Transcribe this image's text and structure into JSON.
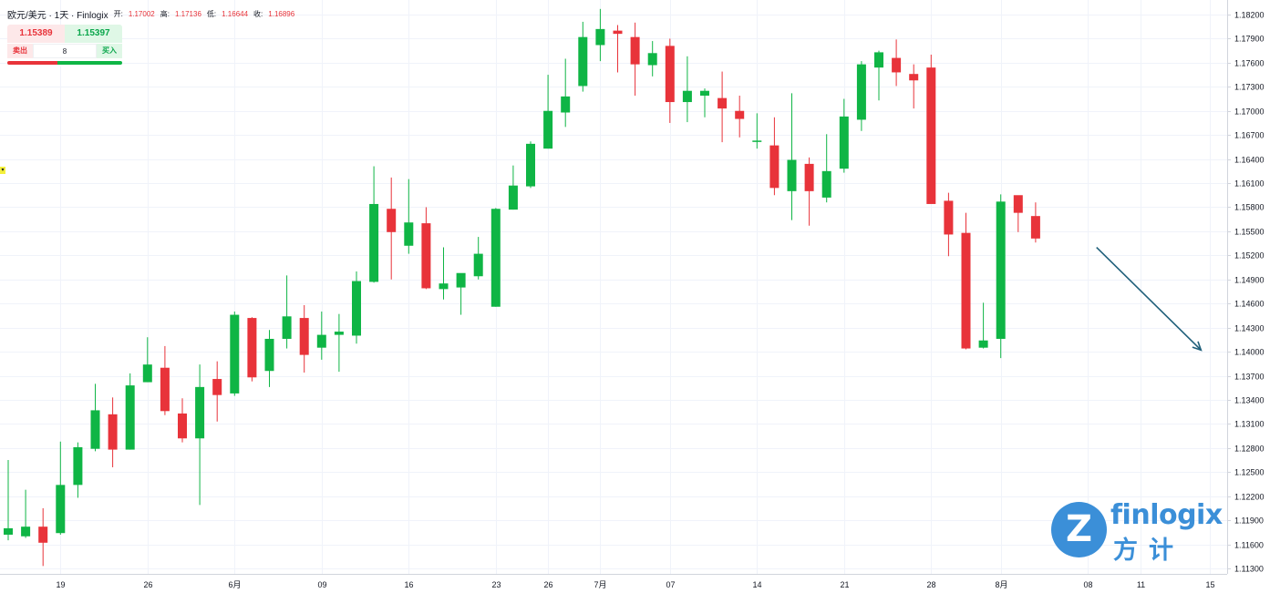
{
  "header": {
    "symbol": "欧元/美元 · 1天 · Finlogix",
    "open_label": "开:",
    "open": "1.17002",
    "high_label": "高:",
    "high": "1.17136",
    "low_label": "低:",
    "low": "1.16644",
    "close_label": "收:",
    "close": "1.16896"
  },
  "trade": {
    "sell_price": "1.15389",
    "buy_price": "1.15397",
    "sell_label": "卖出",
    "buy_label": "买入",
    "quantity": "8"
  },
  "marker": "▾",
  "logo": {
    "text": "finlogix",
    "cn": "方计",
    "symbol": "Z"
  },
  "colors": {
    "up": "#0fb545",
    "down": "#e8333a",
    "arrow": "#1f5f7a",
    "logo": "#3b8fd8"
  },
  "chart_data": {
    "type": "candlestick",
    "y_axis": {
      "min": 1.113,
      "max": 1.182,
      "ticks": [
        "1.18200",
        "1.17900",
        "1.17600",
        "1.17300",
        "1.17000",
        "1.16700",
        "1.16400",
        "1.16100",
        "1.15800",
        "1.15500",
        "1.15200",
        "1.14900",
        "1.14600",
        "1.14300",
        "1.14000",
        "1.13700",
        "1.13400",
        "1.13100",
        "1.12800",
        "1.12500",
        "1.12200",
        "1.11900",
        "1.11600",
        "1.11300"
      ]
    },
    "x_axis": {
      "labels": [
        {
          "label": "19",
          "index": 3
        },
        {
          "label": "26",
          "index": 8
        },
        {
          "label": "6月",
          "index": 13
        },
        {
          "label": "09",
          "index": 18
        },
        {
          "label": "16",
          "index": 23
        },
        {
          "label": "23",
          "index": 28
        },
        {
          "label": "26",
          "index": 31
        },
        {
          "label": "7月",
          "index": 34
        },
        {
          "label": "07",
          "index": 38
        },
        {
          "label": "14",
          "index": 43
        },
        {
          "label": "21",
          "index": 48
        },
        {
          "label": "28",
          "index": 53
        },
        {
          "label": "8月",
          "index": 57
        },
        {
          "label": "08",
          "index": 62
        },
        {
          "label": "11",
          "index": 65
        },
        {
          "label": "15",
          "index": 69
        }
      ]
    },
    "candles": [
      {
        "o": 1.1172,
        "h": 1.1265,
        "l": 1.1165,
        "c": 1.118
      },
      {
        "o": 1.117,
        "h": 1.1228,
        "l": 1.1168,
        "c": 1.1182
      },
      {
        "o": 1.1182,
        "h": 1.1205,
        "l": 1.1133,
        "c": 1.1162
      },
      {
        "o": 1.1174,
        "h": 1.1288,
        "l": 1.1172,
        "c": 1.1234
      },
      {
        "o": 1.1234,
        "h": 1.1287,
        "l": 1.1218,
        "c": 1.1281
      },
      {
        "o": 1.1279,
        "h": 1.136,
        "l": 1.1276,
        "c": 1.1327
      },
      {
        "o": 1.1322,
        "h": 1.1343,
        "l": 1.1256,
        "c": 1.1278
      },
      {
        "o": 1.1278,
        "h": 1.1373,
        "l": 1.1278,
        "c": 1.1358
      },
      {
        "o": 1.1362,
        "h": 1.1418,
        "l": 1.1362,
        "c": 1.1384
      },
      {
        "o": 1.138,
        "h": 1.1407,
        "l": 1.1321,
        "c": 1.1326
      },
      {
        "o": 1.1323,
        "h": 1.1342,
        "l": 1.1287,
        "c": 1.1292
      },
      {
        "o": 1.1292,
        "h": 1.1384,
        "l": 1.1209,
        "c": 1.1356
      },
      {
        "o": 1.1366,
        "h": 1.1388,
        "l": 1.1313,
        "c": 1.1346
      },
      {
        "o": 1.1348,
        "h": 1.145,
        "l": 1.1345,
        "c": 1.1446
      },
      {
        "o": 1.1442,
        "h": 1.1443,
        "l": 1.1363,
        "c": 1.1368
      },
      {
        "o": 1.1376,
        "h": 1.1427,
        "l": 1.1356,
        "c": 1.1416
      },
      {
        "o": 1.1416,
        "h": 1.1495,
        "l": 1.1404,
        "c": 1.1444
      },
      {
        "o": 1.1442,
        "h": 1.1458,
        "l": 1.1374,
        "c": 1.1396
      },
      {
        "o": 1.1405,
        "h": 1.145,
        "l": 1.139,
        "c": 1.1421
      },
      {
        "o": 1.1421,
        "h": 1.1447,
        "l": 1.1375,
        "c": 1.1425
      },
      {
        "o": 1.142,
        "h": 1.15,
        "l": 1.141,
        "c": 1.1488
      },
      {
        "o": 1.1487,
        "h": 1.1631,
        "l": 1.1486,
        "c": 1.1584
      },
      {
        "o": 1.1578,
        "h": 1.1617,
        "l": 1.149,
        "c": 1.1549
      },
      {
        "o": 1.1532,
        "h": 1.1615,
        "l": 1.1522,
        "c": 1.1561
      },
      {
        "o": 1.156,
        "h": 1.158,
        "l": 1.1478,
        "c": 1.1479
      },
      {
        "o": 1.1478,
        "h": 1.153,
        "l": 1.1465,
        "c": 1.1485
      },
      {
        "o": 1.148,
        "h": 1.1497,
        "l": 1.1446,
        "c": 1.1498
      },
      {
        "o": 1.1494,
        "h": 1.1543,
        "l": 1.149,
        "c": 1.1522
      },
      {
        "o": 1.1456,
        "h": 1.1579,
        "l": 1.1456,
        "c": 1.1578
      },
      {
        "o": 1.1577,
        "h": 1.1632,
        "l": 1.1577,
        "c": 1.1607
      },
      {
        "o": 1.1606,
        "h": 1.1662,
        "l": 1.1604,
        "c": 1.1659
      },
      {
        "o": 1.1653,
        "h": 1.1745,
        "l": 1.1653,
        "c": 1.17
      },
      {
        "o": 1.1698,
        "h": 1.1765,
        "l": 1.168,
        "c": 1.1718
      },
      {
        "o": 1.1731,
        "h": 1.1811,
        "l": 1.1724,
        "c": 1.1792
      },
      {
        "o": 1.1782,
        "h": 1.1827,
        "l": 1.1762,
        "c": 1.1802
      },
      {
        "o": 1.18,
        "h": 1.1807,
        "l": 1.1748,
        "c": 1.1796
      },
      {
        "o": 1.1792,
        "h": 1.181,
        "l": 1.1719,
        "c": 1.1758
      },
      {
        "o": 1.1757,
        "h": 1.1787,
        "l": 1.1743,
        "c": 1.1772
      },
      {
        "o": 1.1781,
        "h": 1.179,
        "l": 1.1685,
        "c": 1.1711
      },
      {
        "o": 1.1711,
        "h": 1.1768,
        "l": 1.1686,
        "c": 1.1725
      },
      {
        "o": 1.1719,
        "h": 1.1728,
        "l": 1.1692,
        "c": 1.1725
      },
      {
        "o": 1.1716,
        "h": 1.1749,
        "l": 1.1661,
        "c": 1.1703
      },
      {
        "o": 1.17,
        "h": 1.1719,
        "l": 1.1667,
        "c": 1.169
      },
      {
        "o": 1.1663,
        "h": 1.1697,
        "l": 1.1653,
        "c": 1.1663
      },
      {
        "o": 1.1657,
        "h": 1.1692,
        "l": 1.1595,
        "c": 1.1604
      },
      {
        "o": 1.16,
        "h": 1.1722,
        "l": 1.1564,
        "c": 1.1639
      },
      {
        "o": 1.1634,
        "h": 1.1642,
        "l": 1.1557,
        "c": 1.16
      },
      {
        "o": 1.1592,
        "h": 1.1671,
        "l": 1.1586,
        "c": 1.1625
      },
      {
        "o": 1.1628,
        "h": 1.1715,
        "l": 1.1623,
        "c": 1.1693
      },
      {
        "o": 1.1689,
        "h": 1.1762,
        "l": 1.1675,
        "c": 1.1758
      },
      {
        "o": 1.1754,
        "h": 1.1775,
        "l": 1.1713,
        "c": 1.1773
      },
      {
        "o": 1.1766,
        "h": 1.1789,
        "l": 1.1731,
        "c": 1.1748
      },
      {
        "o": 1.1746,
        "h": 1.1758,
        "l": 1.1703,
        "c": 1.1738
      },
      {
        "o": 1.1754,
        "h": 1.177,
        "l": 1.1585,
        "c": 1.1584
      },
      {
        "o": 1.1588,
        "h": 1.1598,
        "l": 1.1519,
        "c": 1.1546
      },
      {
        "o": 1.1548,
        "h": 1.1573,
        "l": 1.1403,
        "c": 1.1404
      },
      {
        "o": 1.1405,
        "h": 1.1461,
        "l": 1.1404,
        "c": 1.1414
      },
      {
        "o": 1.1416,
        "h": 1.1596,
        "l": 1.1392,
        "c": 1.1587
      },
      {
        "o": 1.1595,
        "h": 1.1594,
        "l": 1.1549,
        "c": 1.1573
      },
      {
        "o": 1.1569,
        "h": 1.1586,
        "l": 1.1536,
        "c": 1.1541
      }
    ],
    "arrow": {
      "from": {
        "index": 62.5,
        "value": 1.153
      },
      "to": {
        "index": 68.5,
        "value": 1.1402
      }
    }
  }
}
